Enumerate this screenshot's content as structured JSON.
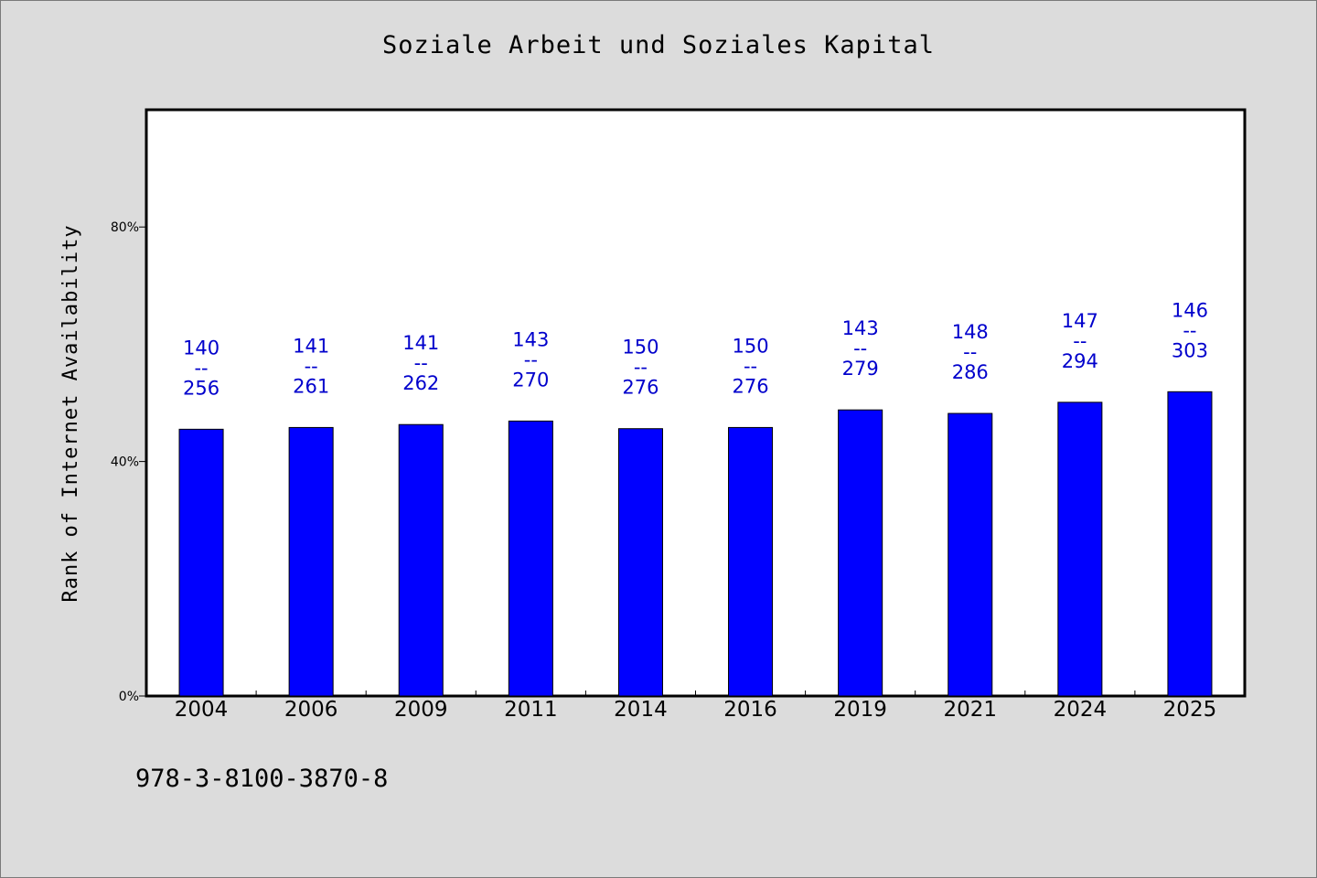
{
  "chart_data": {
    "type": "bar",
    "title": "Soziale Arbeit und Soziales Kapital",
    "ylabel": "Rank of Internet Availability",
    "xlabel": "",
    "ylim": [
      0,
      100
    ],
    "yticks": [
      0,
      40,
      80
    ],
    "ytick_labels": [
      "0%",
      "40%",
      "80%"
    ],
    "categories": [
      "2004",
      "2006",
      "2009",
      "2011",
      "2014",
      "2016",
      "2019",
      "2021",
      "2024",
      "2025"
    ],
    "values": [
      45.5,
      45.8,
      46.3,
      46.9,
      45.6,
      45.8,
      48.8,
      48.2,
      50.1,
      51.9
    ],
    "label_top": [
      "140",
      "141",
      "141",
      "143",
      "150",
      "150",
      "143",
      "148",
      "147",
      "146"
    ],
    "label_sep": "--",
    "label_bottom": [
      "256",
      "261",
      "262",
      "270",
      "276",
      "276",
      "279",
      "286",
      "294",
      "303"
    ],
    "bar_color": "#0000ff",
    "label_color": "#0000cc",
    "grid": false,
    "legend": "none"
  },
  "footer": {
    "isbn": "978-3-8100-3870-8"
  }
}
